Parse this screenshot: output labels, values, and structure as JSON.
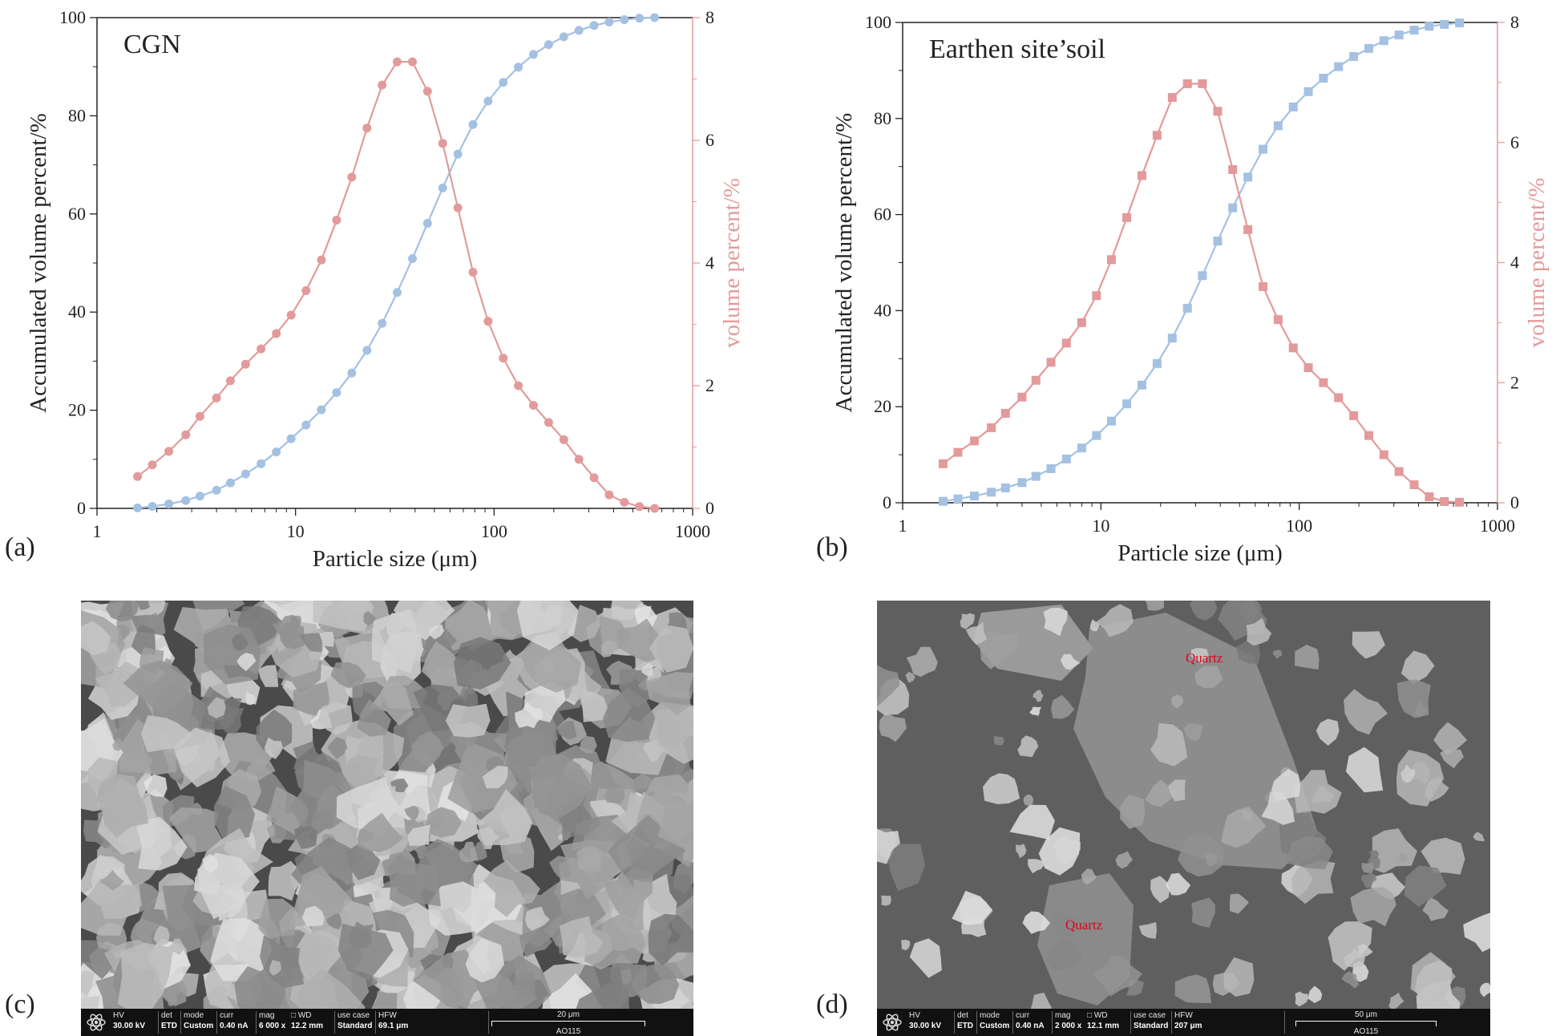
{
  "panel_labels": {
    "a": "(a)",
    "b": "(b)",
    "c": "(c)",
    "d": "(d)"
  },
  "colors": {
    "accumulated": "#a4c1e2",
    "volume": "#e39a9a",
    "axis": "#222222",
    "quartz_label": "#e0001a"
  },
  "chart_data": [
    {
      "type": "line",
      "panel": "a",
      "title": "CGN",
      "xlabel": "Particle size (μm)",
      "ylabel": "Accumulated volume percent/%",
      "ylabel_right": "volume percent/%",
      "xscale": "log",
      "xlim": [
        1,
        1000
      ],
      "ylim": [
        0,
        100
      ],
      "ylim_right": [
        0,
        8
      ],
      "x_ticks": [
        "1",
        "10",
        "100",
        "1000"
      ],
      "y_ticks": [
        "0",
        "20",
        "40",
        "60",
        "80",
        "100"
      ],
      "y_ticks_right": [
        "0",
        "2",
        "4",
        "6",
        "8"
      ],
      "marker": "circle",
      "x": [
        1.6,
        1.9,
        2.3,
        2.8,
        3.3,
        4.0,
        4.7,
        5.6,
        6.7,
        8.0,
        9.5,
        11.3,
        13.5,
        16.1,
        19.2,
        22.9,
        27.3,
        32.5,
        38.8,
        46.2,
        55.1,
        65.7,
        78.3,
        93.3,
        111.2,
        132.5,
        157.9,
        188.3,
        224.4,
        267.5,
        318.8,
        380.0,
        452.9,
        539.8,
        643.5
      ],
      "series": [
        {
          "name": "Accumulated volume percent/%",
          "axis": "left",
          "values": [
            0.1,
            0.4,
            0.9,
            1.6,
            2.5,
            3.7,
            5.2,
            7.0,
            9.1,
            11.5,
            14.2,
            17.0,
            20.1,
            23.6,
            27.6,
            32.2,
            37.7,
            44.0,
            50.9,
            58.1,
            65.3,
            72.2,
            78.2,
            83.0,
            86.8,
            89.9,
            92.5,
            94.5,
            96.1,
            97.4,
            98.4,
            99.1,
            99.6,
            99.9,
            100.0
          ]
        },
        {
          "name": "volume percent/%",
          "axis": "right",
          "values": [
            0.52,
            0.71,
            0.93,
            1.2,
            1.5,
            1.8,
            2.08,
            2.35,
            2.6,
            2.85,
            3.15,
            3.55,
            4.05,
            4.7,
            5.4,
            6.2,
            6.9,
            7.28,
            7.28,
            6.8,
            5.95,
            4.9,
            3.85,
            3.05,
            2.45,
            2.0,
            1.68,
            1.4,
            1.12,
            0.8,
            0.5,
            0.22,
            0.1,
            0.03,
            0.0
          ]
        }
      ]
    },
    {
      "type": "line",
      "panel": "b",
      "title": "Earthen site’soil",
      "xlabel": "Particle size (μm)",
      "ylabel": "Accumulated volume percent/%",
      "ylabel_right": "volume percent/%",
      "xscale": "log",
      "xlim": [
        1,
        1000
      ],
      "ylim": [
        0,
        100
      ],
      "ylim_right": [
        0,
        8
      ],
      "x_ticks": [
        "1",
        "10",
        "100",
        "1000"
      ],
      "y_ticks": [
        "0",
        "20",
        "40",
        "60",
        "80",
        "100"
      ],
      "y_ticks_right": [
        "0",
        "2",
        "4",
        "6",
        "8"
      ],
      "marker": "square",
      "x": [
        1.6,
        1.9,
        2.3,
        2.8,
        3.3,
        4.0,
        4.7,
        5.6,
        6.7,
        8.0,
        9.5,
        11.3,
        13.5,
        16.1,
        19.2,
        22.9,
        27.3,
        32.5,
        38.8,
        46.2,
        55.1,
        65.7,
        78.3,
        93.3,
        111.2,
        132.5,
        157.9,
        188.3,
        224.4,
        267.5,
        318.8,
        380.0,
        452.9,
        539.8,
        643.5
      ],
      "series": [
        {
          "name": "Accumulated volume percent/%",
          "axis": "left",
          "values": [
            0.3,
            0.8,
            1.4,
            2.2,
            3.1,
            4.2,
            5.5,
            7.1,
            9.1,
            11.4,
            14.0,
            17.0,
            20.6,
            24.5,
            29.0,
            34.3,
            40.5,
            47.3,
            54.5,
            61.4,
            67.8,
            73.6,
            78.5,
            82.4,
            85.6,
            88.4,
            90.8,
            92.9,
            94.6,
            96.2,
            97.4,
            98.4,
            99.2,
            99.6,
            99.9
          ]
        },
        {
          "name": "volume percent/%",
          "axis": "right",
          "values": [
            0.65,
            0.84,
            1.03,
            1.25,
            1.49,
            1.76,
            2.04,
            2.34,
            2.66,
            3.0,
            3.45,
            4.05,
            4.75,
            5.45,
            6.12,
            6.75,
            6.98,
            6.98,
            6.52,
            5.55,
            4.55,
            3.6,
            3.05,
            2.58,
            2.25,
            2.0,
            1.75,
            1.45,
            1.12,
            0.8,
            0.52,
            0.3,
            0.1,
            0.02,
            0.01
          ]
        }
      ]
    }
  ],
  "sem_c": {
    "labels": {
      "hv": "HV",
      "det": "det",
      "mode": "mode",
      "curr": "curr",
      "mag": "mag",
      "wd": "WD",
      "use_case": "use case",
      "hfw": "HFW"
    },
    "values": {
      "hv": "30.00 kV",
      "det": "ETD",
      "mode": "Custom",
      "curr": "0.40 nA",
      "mag": "6 000 x",
      "wd": "12.2 mm",
      "use_case": "Standard",
      "hfw": "69.1 μm"
    },
    "scale": "20 μm",
    "sample": "AO115"
  },
  "sem_d": {
    "labels": {
      "hv": "HV",
      "det": "det",
      "mode": "mode",
      "curr": "curr",
      "mag": "mag",
      "wd": "WD",
      "use_case": "use case",
      "hfw": "HFW"
    },
    "values": {
      "hv": "30.00 kV",
      "det": "ETD",
      "mode": "Custom",
      "curr": "0.40 nA",
      "mag": "2 000 x",
      "wd": "12.1 mm",
      "use_case": "Standard",
      "hfw": "207 μm"
    },
    "scale": "50 μm",
    "sample": "AO115",
    "annotations": [
      "Quartz",
      "Quartz"
    ]
  }
}
